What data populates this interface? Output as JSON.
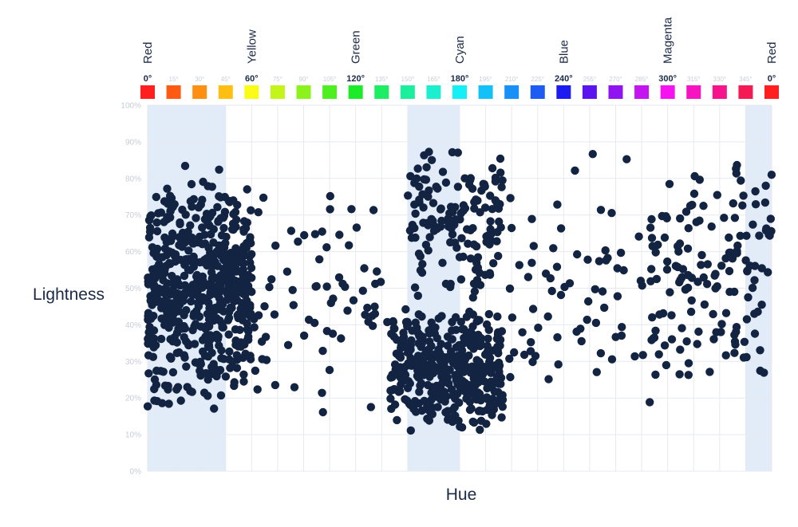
{
  "chart_data": {
    "type": "scatter",
    "title": "",
    "xlabel": "Hue",
    "ylabel": "Lightness",
    "xlim": [
      0,
      360
    ],
    "ylim": [
      0,
      100
    ],
    "y_ticks": [
      "0%",
      "10%",
      "20%",
      "30%",
      "40%",
      "50%",
      "60%",
      "70%",
      "80%",
      "90%",
      "100%"
    ],
    "grid": true,
    "point_color": "#132443",
    "highlight_color": "#e2ecf8",
    "highlighted_hue_ranges": [
      [
        0,
        45
      ],
      [
        150,
        180
      ],
      [
        345,
        360
      ]
    ],
    "hue_name_labels": [
      "Red",
      "Yellow",
      "Green",
      "Cyan",
      "Blue",
      "Magenta",
      "Red"
    ],
    "hue_swatches": [
      {
        "label": "0°",
        "color": "#ff1f1f",
        "major": true
      },
      {
        "label": "15°",
        "color": "#ff5a12",
        "major": false
      },
      {
        "label": "30°",
        "color": "#ff8f12",
        "major": false
      },
      {
        "label": "45°",
        "color": "#ffbf12",
        "major": false
      },
      {
        "label": "60°",
        "color": "#fbfb18",
        "major": true
      },
      {
        "label": "75°",
        "color": "#c4f51a",
        "major": false
      },
      {
        "label": "90°",
        "color": "#8cf21c",
        "major": false
      },
      {
        "label": "105°",
        "color": "#4fee20",
        "major": false
      },
      {
        "label": "120°",
        "color": "#1ceb2a",
        "major": true
      },
      {
        "label": "135°",
        "color": "#1ced63",
        "major": false
      },
      {
        "label": "150°",
        "color": "#1cef9c",
        "major": false
      },
      {
        "label": "165°",
        "color": "#1cefcf",
        "major": false
      },
      {
        "label": "180°",
        "color": "#14f0f5",
        "major": true
      },
      {
        "label": "195°",
        "color": "#14c0f8",
        "major": false
      },
      {
        "label": "210°",
        "color": "#1890f7",
        "major": false
      },
      {
        "label": "225°",
        "color": "#1c5cf2",
        "major": false
      },
      {
        "label": "240°",
        "color": "#1c1cf0",
        "major": true
      },
      {
        "label": "255°",
        "color": "#5a14ef",
        "major": false
      },
      {
        "label": "270°",
        "color": "#8f14ef",
        "major": false
      },
      {
        "label": "285°",
        "color": "#c414ef",
        "major": false
      },
      {
        "label": "300°",
        "color": "#f514f0",
        "major": true
      },
      {
        "label": "315°",
        "color": "#f514c0",
        "major": false
      },
      {
        "label": "330°",
        "color": "#f5148c",
        "major": false
      },
      {
        "label": "345°",
        "color": "#f51a55",
        "major": false
      },
      {
        "label": "0°",
        "color": "#ff1f1f",
        "major": true
      }
    ],
    "clusters": [
      {
        "hue_range": [
          0,
          45
        ],
        "lightness_range": [
          15,
          85
        ],
        "density": "high"
      },
      {
        "hue_range": [
          45,
          60
        ],
        "lightness_range": [
          20,
          80
        ],
        "density": "medium"
      },
      {
        "hue_range": [
          60,
          140
        ],
        "lightness_range": [
          14,
          80
        ],
        "density": "low"
      },
      {
        "hue_range": [
          140,
          205
        ],
        "lightness_range": [
          10,
          45
        ],
        "density": "high"
      },
      {
        "hue_range": [
          150,
          205
        ],
        "lightness_range": [
          45,
          90
        ],
        "density": "medium"
      },
      {
        "hue_range": [
          205,
          290
        ],
        "lightness_range": [
          15,
          90
        ],
        "density": "low"
      },
      {
        "hue_range": [
          290,
          360
        ],
        "lightness_range": [
          20,
          90
        ],
        "density": "medium"
      }
    ]
  }
}
